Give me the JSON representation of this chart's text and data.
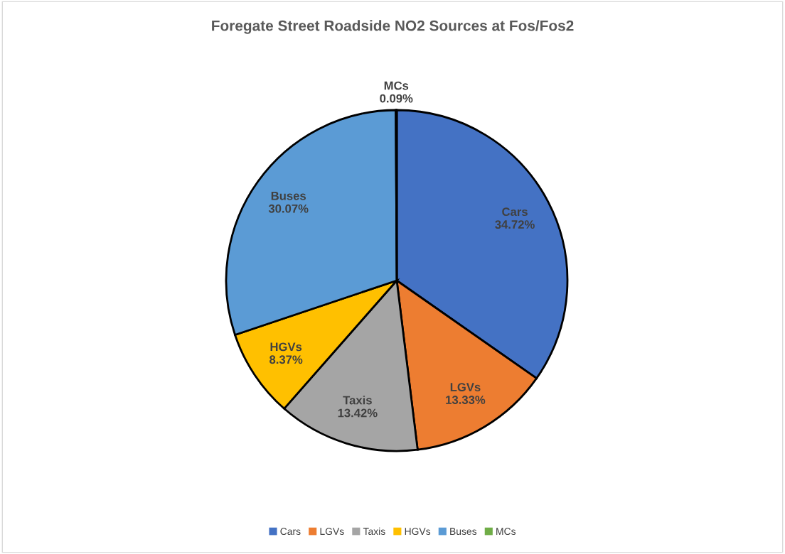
{
  "chart_data": {
    "type": "pie",
    "title": "Foregate Street Roadside NO2 Sources at Fos/Fos2",
    "categories": [
      "Cars",
      "LGVs",
      "Taxis",
      "HGVs",
      "Buses",
      "MCs"
    ],
    "values": [
      34.72,
      13.33,
      13.42,
      8.37,
      30.07,
      0.09
    ],
    "value_labels": [
      "34.72%",
      "13.33%",
      "13.42%",
      "8.37%",
      "30.07%",
      "0.09%"
    ],
    "colors": [
      "#4472c4",
      "#ed7d31",
      "#a5a5a5",
      "#ffc000",
      "#5b9bd5",
      "#70ad47"
    ],
    "legend": "bottom"
  }
}
